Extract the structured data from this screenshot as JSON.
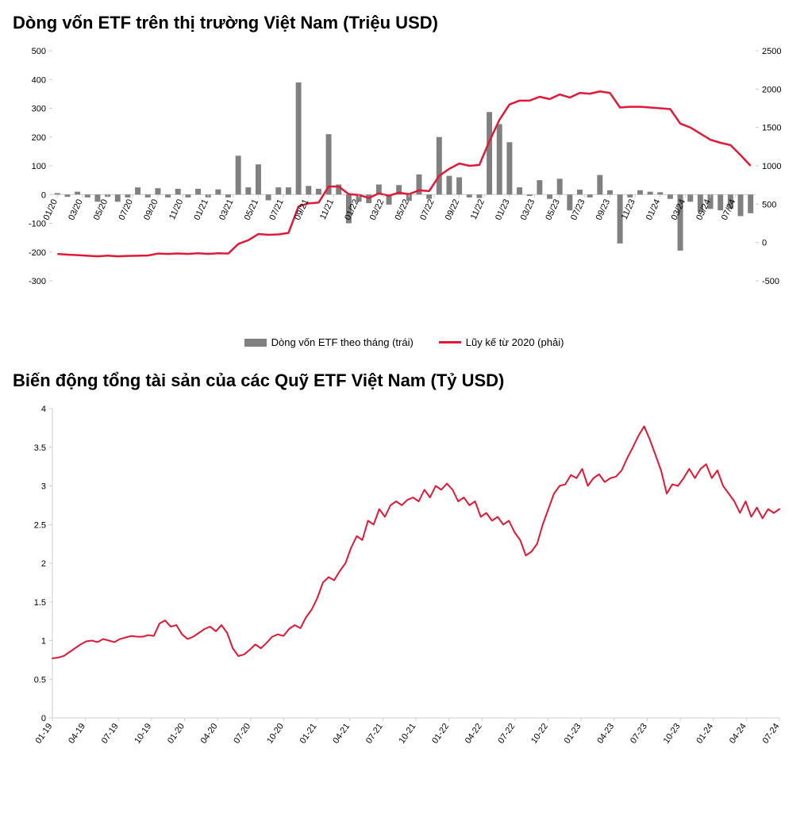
{
  "chart1": {
    "type": "bar+line",
    "title": "Dòng vốn ETF trên thị trường Việt Nam (Triệu USD)",
    "x_labels": [
      "01/20",
      "03/20",
      "05/20",
      "07/20",
      "09/20",
      "11/20",
      "01/21",
      "03/21",
      "05/21",
      "07/21",
      "09/21",
      "11/21",
      "01/22",
      "03/22",
      "05/22",
      "07/22",
      "09/22",
      "11/22",
      "01/23",
      "03/23",
      "05/23",
      "07/23",
      "09/23",
      "11/23",
      "01/24",
      "03/24",
      "05/24",
      "07/24"
    ],
    "bar_values": [
      5,
      -8,
      10,
      -10,
      -25,
      -8,
      -25,
      -10,
      25,
      -10,
      22,
      -10,
      20,
      -10,
      20,
      -10,
      18,
      -10,
      135,
      25,
      105,
      -20,
      25,
      25,
      390,
      30,
      20,
      210,
      35,
      -100,
      -25,
      -30,
      35,
      -35,
      33,
      -22,
      70,
      -15,
      200,
      65,
      60,
      -10,
      -12,
      287,
      245,
      182,
      25,
      -5,
      50,
      -15,
      55,
      -55,
      17,
      -10,
      68,
      15,
      -170,
      -10,
      15,
      10,
      8,
      -15,
      -195,
      -25,
      -60,
      -50,
      -55,
      -50,
      -75,
      -65
    ],
    "line_values": [
      -150,
      -158,
      -165,
      -173,
      -180,
      -172,
      -180,
      -176,
      -173,
      -170,
      -145,
      -150,
      -143,
      -150,
      -140,
      -150,
      -140,
      -145,
      -20,
      30,
      110,
      100,
      105,
      125,
      470,
      510,
      520,
      730,
      730,
      630,
      620,
      580,
      640,
      610,
      650,
      630,
      680,
      670,
      870,
      960,
      1030,
      1000,
      1010,
      1320,
      1600,
      1800,
      1850,
      1850,
      1900,
      1870,
      1930,
      1890,
      1950,
      1940,
      1970,
      1950,
      1760,
      1770,
      1770,
      1760,
      1750,
      1740,
      1550,
      1500,
      1420,
      1340,
      1300,
      1270,
      1140,
      1000
    ],
    "y_left": {
      "min": -300,
      "max": 500,
      "step": 100
    },
    "y_right": {
      "min": -500,
      "max": 2500,
      "step": 500
    },
    "bar_color": "#808080",
    "line_color": "#e31837",
    "line_width": 2.5,
    "background_color": "#ffffff",
    "axis_color": "#cccccc",
    "text_color": "#000000",
    "title_fontsize": 22,
    "tick_fontsize": 11,
    "legend": {
      "items": [
        {
          "label": "Dòng vốn ETF theo tháng (trái)",
          "type": "bar"
        },
        {
          "label": "Lũy kế từ 2020 (phải)",
          "type": "line"
        }
      ]
    }
  },
  "chart2": {
    "type": "line",
    "title": "Biến động tổng tài sản của các Quỹ ETF Việt Nam (Tỷ USD)",
    "x_labels": [
      "01-19",
      "04-19",
      "07-19",
      "10-19",
      "01-20",
      "04-20",
      "07-20",
      "10-20",
      "01-21",
      "04-21",
      "07-21",
      "10-21",
      "01-22",
      "04-22",
      "07-22",
      "10-22",
      "01-23",
      "04-23",
      "07-23",
      "10-23",
      "01-24",
      "04-24",
      "07-24"
    ],
    "line_values": [
      0.77,
      0.78,
      0.8,
      0.85,
      0.9,
      0.95,
      0.99,
      1.0,
      0.98,
      1.02,
      1.0,
      0.98,
      1.02,
      1.04,
      1.06,
      1.05,
      1.05,
      1.07,
      1.06,
      1.22,
      1.26,
      1.18,
      1.2,
      1.08,
      1.02,
      1.05,
      1.1,
      1.15,
      1.18,
      1.12,
      1.2,
      1.1,
      0.9,
      0.8,
      0.82,
      0.88,
      0.95,
      0.9,
      0.97,
      1.05,
      1.08,
      1.06,
      1.15,
      1.2,
      1.16,
      1.3,
      1.4,
      1.55,
      1.75,
      1.82,
      1.78,
      1.9,
      2.0,
      2.2,
      2.35,
      2.3,
      2.55,
      2.5,
      2.7,
      2.6,
      2.75,
      2.8,
      2.75,
      2.82,
      2.85,
      2.8,
      2.95,
      2.85,
      3.0,
      2.95,
      3.03,
      2.95,
      2.8,
      2.85,
      2.75,
      2.8,
      2.6,
      2.65,
      2.55,
      2.6,
      2.5,
      2.55,
      2.4,
      2.3,
      2.1,
      2.15,
      2.25,
      2.5,
      2.7,
      2.9,
      3.0,
      3.02,
      3.14,
      3.1,
      3.22,
      3.0,
      3.1,
      3.15,
      3.05,
      3.1,
      3.12,
      3.2,
      3.36,
      3.5,
      3.65,
      3.77,
      3.6,
      3.4,
      3.2,
      2.9,
      3.02,
      3.0,
      3.1,
      3.22,
      3.1,
      3.22,
      3.28,
      3.1,
      3.2,
      3.0,
      2.9,
      2.8,
      2.65,
      2.8,
      2.6,
      2.72,
      2.58,
      2.7,
      2.65,
      2.7
    ],
    "y": {
      "min": 0,
      "max": 4,
      "step": 0.5
    },
    "line_color": "#e31837",
    "line_width": 2,
    "background_color": "#ffffff",
    "axis_color": "#cccccc",
    "text_color": "#000000",
    "title_fontsize": 22,
    "tick_fontsize": 11
  }
}
